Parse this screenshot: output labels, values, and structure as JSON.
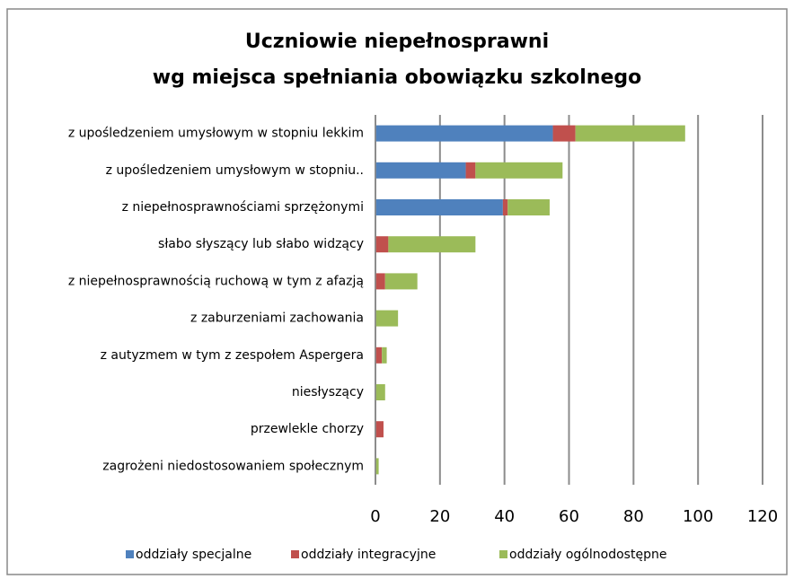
{
  "chart_data": {
    "type": "stacked-barh",
    "title": [
      "Uczniowie niepełnosprawni",
      "wg miejsca spełniania obowiązku szkolnego"
    ],
    "categories": [
      "z upośledzeniem umysłowym w stopniu lekkim",
      "z upośledzeniem umysłowym w stopniu..",
      "z niepełnosprawnościami sprzężonymi",
      "słabo słyszący lub słabo widzący",
      "z niepełnosprawnością ruchową w tym z afazją",
      "z zaburzeniami zachowania",
      "z autyzmem w tym z zespołem Aspergera",
      "niesłyszący",
      "przewlekle chorzy",
      "zagrożeni niedostosowaniem społecznym"
    ],
    "series": [
      {
        "name": "oddziały specjalne",
        "color": "#4f81bd",
        "values": [
          55,
          28,
          39.5,
          0,
          0,
          0,
          0,
          0,
          0,
          0
        ]
      },
      {
        "name": "oddziały integracyjne",
        "color": "#c0504d",
        "values": [
          7,
          3,
          1.5,
          4,
          3,
          0,
          2,
          0,
          2.5,
          0
        ]
      },
      {
        "name": "oddziały ogólnodostępne",
        "color": "#9bbb59",
        "values": [
          34,
          27,
          13,
          27,
          10,
          7,
          1.5,
          3,
          0,
          1
        ]
      }
    ],
    "xlim": [
      0,
      120
    ],
    "xticks": [
      0,
      20,
      40,
      60,
      80,
      100,
      120
    ],
    "grid": true,
    "legend": "bottom"
  }
}
